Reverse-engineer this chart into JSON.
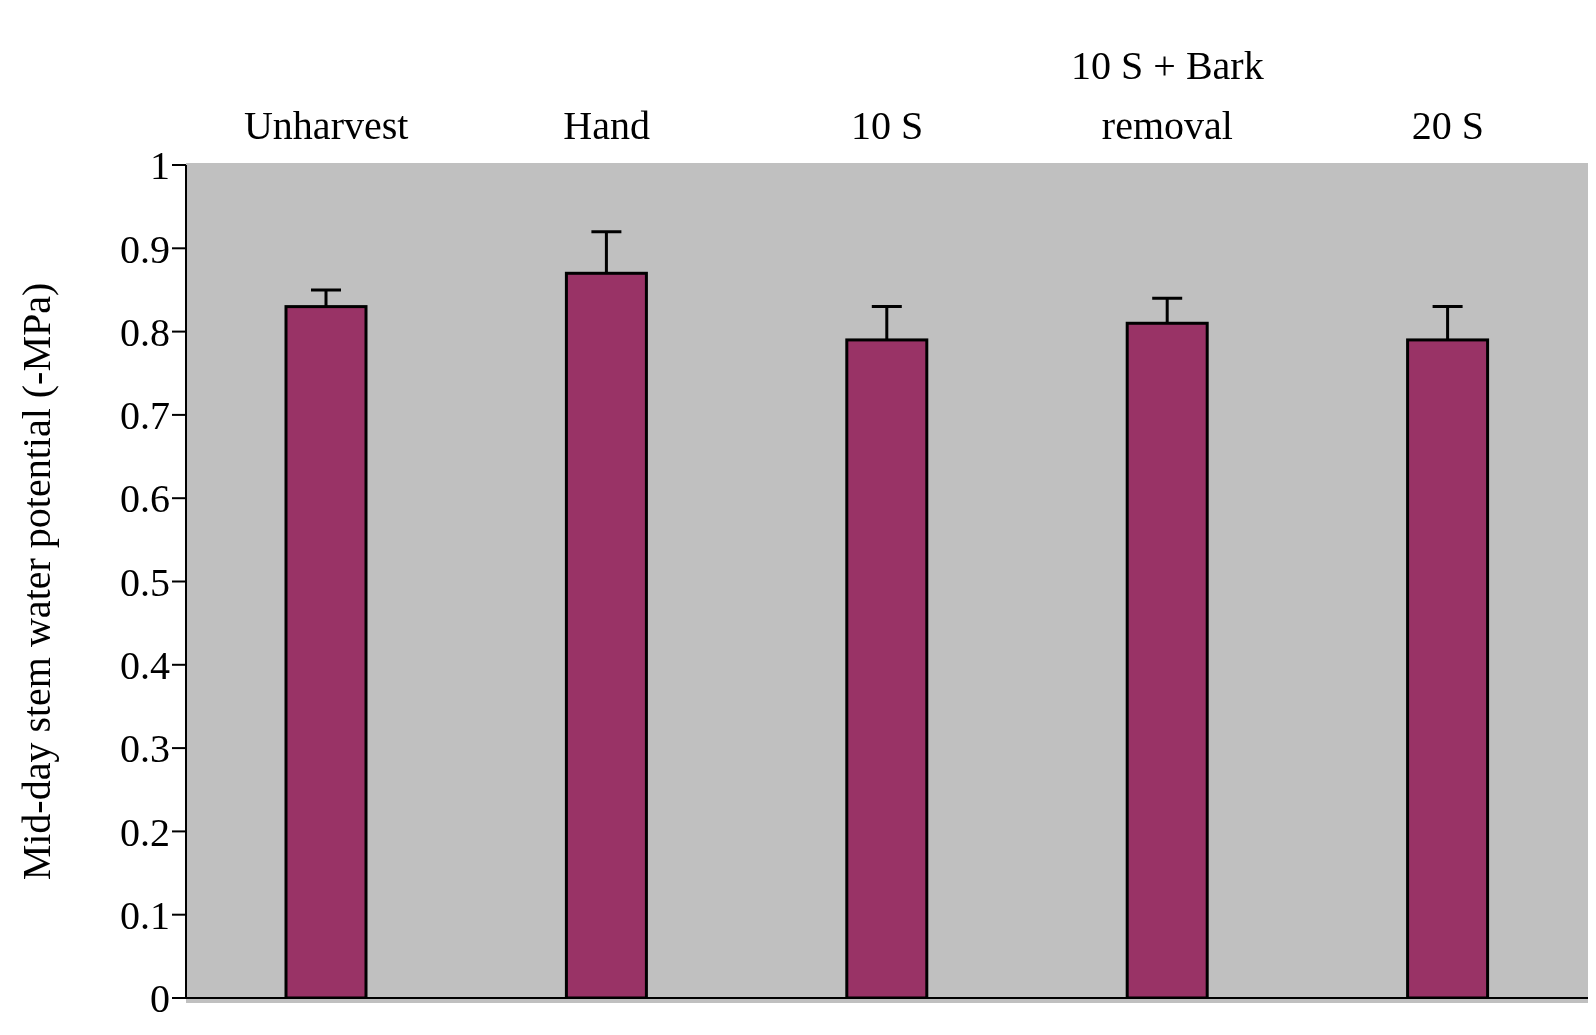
{
  "chart_data": {
    "type": "bar",
    "categories": [
      "Unharvest",
      "Hand",
      "10 S",
      "10 S + Bark removal",
      "20 S"
    ],
    "values": [
      0.83,
      0.87,
      0.79,
      0.81,
      0.79
    ],
    "errors": [
      [
        0.83,
        0.85
      ],
      [
        0.87,
        0.92
      ],
      [
        0.79,
        0.83
      ],
      [
        0.81,
        0.84
      ],
      [
        0.79,
        0.83
      ]
    ],
    "color": "#993366",
    "ylabel": "Mid-day stem water potential (-MPa)",
    "ylim": [
      0,
      1
    ],
    "yticks": [
      0,
      0.1,
      0.2,
      0.3,
      0.4,
      0.5,
      0.6,
      0.7,
      0.8,
      0.9,
      1
    ],
    "legend": false
  }
}
